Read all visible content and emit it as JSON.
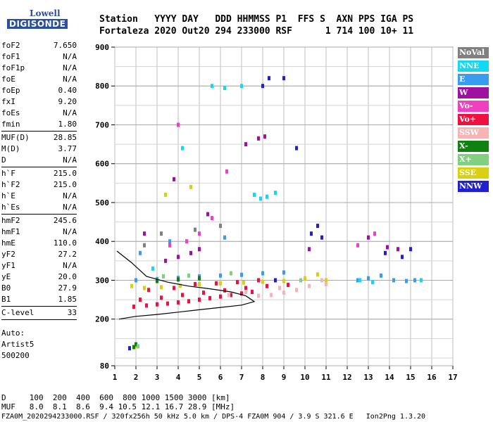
{
  "logo": {
    "line1": "Lowell",
    "line2": "DIGISONDE"
  },
  "header": {
    "labels": "Station   YYYY DAY   DDD HHMMSS P1  FFS S  AXN PPS IGA PS",
    "values": "Fortaleza 2020 Out20 294 233000 RSF      1 714 100 10+ 11"
  },
  "params": {
    "group1": [
      {
        "name": "foF2",
        "value": "7.650"
      },
      {
        "name": "foF1",
        "value": "N/A"
      },
      {
        "name": "foF1p",
        "value": "N/A"
      },
      {
        "name": "foE",
        "value": "N/A"
      },
      {
        "name": "foEp",
        "value": "0.40"
      },
      {
        "name": "fxI",
        "value": "9.20"
      },
      {
        "name": "foEs",
        "value": "N/A"
      },
      {
        "name": "fmin",
        "value": "1.80"
      }
    ],
    "group2": [
      {
        "name": "MUF(D)",
        "value": "28.85"
      },
      {
        "name": "M(D)",
        "value": "3.77"
      },
      {
        "name": "D",
        "value": "N/A"
      }
    ],
    "group3": [
      {
        "name": "h`F",
        "value": "215.0"
      },
      {
        "name": "h`F2",
        "value": "215.0"
      },
      {
        "name": "h`E",
        "value": "N/A"
      },
      {
        "name": "h`Es",
        "value": "N/A"
      }
    ],
    "group4": [
      {
        "name": "hmF2",
        "value": "245.6"
      },
      {
        "name": "hmF1",
        "value": "N/A"
      },
      {
        "name": "hmE",
        "value": "110.0"
      },
      {
        "name": "yF2",
        "value": "27.2"
      },
      {
        "name": "yF1",
        "value": "N/A"
      },
      {
        "name": "yE",
        "value": "20.0"
      },
      {
        "name": "B0",
        "value": "27.9"
      },
      {
        "name": "B1",
        "value": "1.85"
      }
    ],
    "group5": [
      {
        "name": "C-level",
        "value": "33"
      }
    ],
    "auto": [
      "Auto:",
      "Artist5",
      "500200"
    ]
  },
  "legend": [
    {
      "label": "NoVal",
      "color": "#808080"
    },
    {
      "label": "NNE",
      "color": "#12d8f0"
    },
    {
      "label": "E",
      "color": "#3a9cf0"
    },
    {
      "label": "W",
      "color": "#a010a0"
    },
    {
      "label": "Vo-",
      "color": "#f040c0"
    },
    {
      "label": "Vo+",
      "color": "#f01040"
    },
    {
      "label": "SSW",
      "color": "#f8b4b4"
    },
    {
      "label": "X-",
      "color": "#108010"
    },
    {
      "label": "X+",
      "color": "#80d080"
    },
    {
      "label": "SSE",
      "color": "#d8d010"
    },
    {
      "label": "NNW",
      "color": "#2020d0"
    }
  ],
  "footer": {
    "line1": "D     100  200  400  600  800 1000 1500 3000 [km]",
    "line2": "MUF   8.0  8.1  8.6  9.4 10.5 12.1 16.7 28.9 [MHz]",
    "line3": "FZA0M_2020294233000.RSF / 320fx256h 50 kHz 5.0 km / DPS-4 FZA0M 904 / 3.9 S 321.6 E   Ion2Png 1.3.20"
  },
  "chart_data": {
    "type": "scatter",
    "title": "",
    "xlabel": "",
    "ylabel": "",
    "xlim": [
      1,
      17
    ],
    "ylim": [
      80,
      900
    ],
    "x_ticks": [
      "1",
      "2",
      "3",
      "4",
      "5",
      "6",
      "7",
      "8",
      "9",
      "10",
      "11",
      "12",
      "13",
      "14",
      "15",
      "16",
      "17"
    ],
    "y_ticks": [
      "80",
      "200",
      "300",
      "400",
      "500",
      "600",
      "700",
      "800",
      "900"
    ],
    "grid": true,
    "series": [
      {
        "name": "Vo+",
        "color": "#f01040",
        "points": [
          [
            1.9,
            232
          ],
          [
            2.5,
            235
          ],
          [
            3.0,
            238
          ],
          [
            3.5,
            240
          ],
          [
            4.0,
            243
          ],
          [
            4.5,
            246
          ],
          [
            5.0,
            250
          ],
          [
            5.5,
            254
          ],
          [
            6.0,
            258
          ],
          [
            6.5,
            262
          ],
          [
            7.0,
            266
          ],
          [
            7.5,
            270
          ],
          [
            2.2,
            250
          ],
          [
            3.2,
            255
          ],
          [
            4.2,
            262
          ],
          [
            5.2,
            268
          ],
          [
            6.2,
            274
          ],
          [
            7.2,
            280
          ],
          [
            8.2,
            285
          ],
          [
            9.2,
            288
          ],
          [
            2.6,
            275
          ],
          [
            3.8,
            280
          ],
          [
            4.8,
            290
          ],
          [
            5.8,
            292
          ],
          [
            6.8,
            295
          ],
          [
            7.8,
            300
          ]
        ]
      },
      {
        "name": "SSE",
        "color": "#d8d010",
        "points": [
          [
            1.8,
            285
          ],
          [
            2.4,
            280
          ],
          [
            3.2,
            282
          ],
          [
            4.1,
            286
          ],
          [
            5.0,
            290
          ],
          [
            6.0,
            292
          ],
          [
            7.1,
            294
          ],
          [
            8.0,
            296
          ],
          [
            9.0,
            298
          ],
          [
            10.0,
            305
          ],
          [
            10.6,
            315
          ],
          [
            11.0,
            300
          ],
          [
            3.4,
            520
          ],
          [
            4.6,
            540
          ],
          [
            2.0,
            130
          ]
        ]
      },
      {
        "name": "E",
        "color": "#3a9cf0",
        "points": [
          [
            2.0,
            300
          ],
          [
            3.0,
            303
          ],
          [
            4.0,
            306
          ],
          [
            5.0,
            310
          ],
          [
            6.0,
            312
          ],
          [
            7.0,
            314
          ],
          [
            8.0,
            318
          ],
          [
            9.0,
            320
          ],
          [
            12.5,
            300
          ],
          [
            13.0,
            305
          ],
          [
            13.6,
            312
          ],
          [
            14.2,
            300
          ],
          [
            14.8,
            298
          ],
          [
            15.2,
            300
          ],
          [
            2.2,
            370
          ],
          [
            3.6,
            400
          ],
          [
            6.2,
            410
          ]
        ]
      },
      {
        "name": "NNE",
        "color": "#12d8f0",
        "points": [
          [
            7.6,
            520
          ],
          [
            7.9,
            510
          ],
          [
            8.2,
            515
          ],
          [
            8.6,
            525
          ],
          [
            12.6,
            300
          ],
          [
            13.2,
            295
          ],
          [
            15.5,
            300
          ],
          [
            4.2,
            640
          ],
          [
            5.6,
            800
          ],
          [
            6.2,
            795
          ],
          [
            7.0,
            800
          ],
          [
            2.8,
            330
          ]
        ]
      },
      {
        "name": "W",
        "color": "#a010a0",
        "points": [
          [
            3.4,
            350
          ],
          [
            4.0,
            360
          ],
          [
            4.6,
            370
          ],
          [
            5.0,
            380
          ],
          [
            7.2,
            650
          ],
          [
            7.8,
            665
          ],
          [
            8.1,
            670
          ],
          [
            10.2,
            380
          ],
          [
            13.0,
            410
          ],
          [
            13.9,
            385
          ],
          [
            14.4,
            380
          ],
          [
            2.4,
            420
          ],
          [
            3.8,
            560
          ],
          [
            5.4,
            470
          ]
        ]
      },
      {
        "name": "NNW",
        "color": "#2020d0",
        "points": [
          [
            8.3,
            820
          ],
          [
            8.0,
            800
          ],
          [
            9.0,
            820
          ],
          [
            10.3,
            420
          ],
          [
            10.6,
            440
          ],
          [
            10.8,
            410
          ],
          [
            13.8,
            370
          ],
          [
            14.6,
            360
          ],
          [
            15.0,
            380
          ],
          [
            9.6,
            640
          ],
          [
            8.6,
            300
          ],
          [
            1.7,
            125
          ]
        ]
      },
      {
        "name": "SSW",
        "color": "#f8b4b4",
        "points": [
          [
            7.8,
            260
          ],
          [
            8.4,
            262
          ],
          [
            9.0,
            268
          ],
          [
            9.6,
            275
          ],
          [
            10.2,
            285
          ],
          [
            11.0,
            290
          ],
          [
            7.2,
            270
          ],
          [
            6.4,
            262
          ],
          [
            8.8,
            280
          ],
          [
            10.8,
            300
          ]
        ]
      },
      {
        "name": "Vo-",
        "color": "#f040c0",
        "points": [
          [
            3.6,
            390
          ],
          [
            4.4,
            400
          ],
          [
            5.0,
            420
          ],
          [
            5.6,
            460
          ],
          [
            12.5,
            390
          ],
          [
            13.3,
            420
          ],
          [
            4.0,
            700
          ],
          [
            6.3,
            580
          ]
        ]
      },
      {
        "name": "X-",
        "color": "#108010",
        "points": [
          [
            1.9,
            128
          ],
          [
            2.0,
            135
          ],
          [
            3.0,
            298
          ],
          [
            4.0,
            302
          ],
          [
            5.0,
            305
          ]
        ]
      },
      {
        "name": "X+",
        "color": "#80d080",
        "points": [
          [
            2.1,
            130
          ],
          [
            3.3,
            310
          ],
          [
            4.5,
            312
          ],
          [
            6.5,
            318
          ],
          [
            9.8,
            300
          ]
        ]
      },
      {
        "name": "NoVal",
        "color": "#808080",
        "points": [
          [
            2.4,
            390
          ],
          [
            3.2,
            420
          ],
          [
            4.8,
            430
          ],
          [
            6.0,
            440
          ]
        ]
      }
    ],
    "trace_curve": [
      [
        1.2,
        200
      ],
      [
        2.0,
        207
      ],
      [
        3.0,
        212
      ],
      [
        4.0,
        218
      ],
      [
        5.0,
        224
      ],
      [
        6.0,
        230
      ],
      [
        7.0,
        236
      ],
      [
        7.6,
        245
      ],
      [
        7.2,
        260
      ],
      [
        6.5,
        270
      ],
      [
        5.5,
        278
      ],
      [
        4.5,
        285
      ],
      [
        3.5,
        295
      ],
      [
        2.5,
        310
      ],
      [
        1.8,
        345
      ],
      [
        1.1,
        375
      ]
    ]
  }
}
